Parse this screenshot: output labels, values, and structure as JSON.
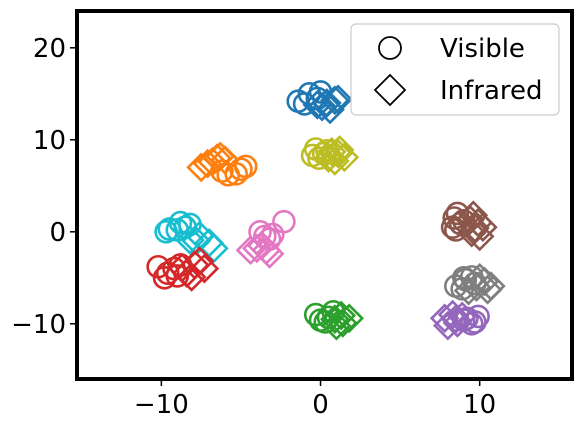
{
  "chart_data": {
    "type": "scatter",
    "title": "",
    "xlabel": "",
    "ylabel": "",
    "xlim": [
      -15.3,
      15.8
    ],
    "ylim": [
      -16.0,
      24.0
    ],
    "xticks": [
      -10,
      0,
      10
    ],
    "yticks": [
      -10,
      0,
      10,
      20
    ],
    "xtick_labels": [
      "−10",
      "0",
      "10"
    ],
    "ytick_labels": [
      "−10",
      "0",
      "10",
      "20"
    ],
    "grid": false,
    "legend_position": "top-right",
    "legend": [
      {
        "label": "Visible",
        "marker": "circle"
      },
      {
        "label": "Infrared",
        "marker": "diamond"
      }
    ],
    "series": [
      {
        "color": "#1f77b4",
        "visible": [
          [
            -1.4,
            14.2
          ],
          [
            -0.7,
            15.0
          ],
          [
            -0.2,
            14.5
          ],
          [
            -1.0,
            13.9
          ],
          [
            0.0,
            15.2
          ]
        ],
        "infrared": [
          [
            0.4,
            14.0
          ],
          [
            0.9,
            14.3
          ],
          [
            0.1,
            13.6
          ],
          [
            0.6,
            13.3
          ],
          [
            -0.2,
            13.8
          ],
          [
            1.1,
            14.4
          ]
        ]
      },
      {
        "color": "#ff7f0e",
        "visible": [
          [
            -5.8,
            6.2
          ],
          [
            -5.0,
            6.8
          ],
          [
            -4.7,
            7.1
          ],
          [
            -6.2,
            6.6
          ],
          [
            -5.3,
            6.3
          ]
        ],
        "infrared": [
          [
            -7.5,
            7.0
          ],
          [
            -6.8,
            7.6
          ],
          [
            -6.3,
            8.2
          ],
          [
            -7.1,
            7.4
          ],
          [
            -6.0,
            7.8
          ],
          [
            -6.5,
            8.0
          ]
        ]
      },
      {
        "color": "#bcbd22",
        "visible": [
          [
            -0.5,
            8.3
          ],
          [
            -0.3,
            9.0
          ],
          [
            0.2,
            8.5
          ],
          [
            -0.1,
            8.0
          ],
          [
            0.4,
            8.8
          ]
        ],
        "infrared": [
          [
            0.5,
            8.0
          ],
          [
            1.1,
            8.5
          ],
          [
            0.9,
            7.7
          ],
          [
            1.5,
            8.1
          ],
          [
            0.7,
            8.7
          ],
          [
            1.2,
            8.9
          ]
        ]
      },
      {
        "color": "#17becf",
        "visible": [
          [
            -9.5,
            0.3
          ],
          [
            -8.8,
            1.0
          ],
          [
            -8.2,
            0.8
          ],
          [
            -9.0,
            0.2
          ],
          [
            -8.5,
            0.5
          ],
          [
            -9.7,
            0.0
          ]
        ],
        "infrared": [
          [
            -8.2,
            -0.9
          ],
          [
            -7.6,
            -0.4
          ],
          [
            -7.0,
            -1.2
          ],
          [
            -7.8,
            -1.0
          ],
          [
            -6.7,
            -1.8
          ]
        ]
      },
      {
        "color": "#e377c2",
        "visible": [
          [
            -3.5,
            -0.5
          ],
          [
            -2.3,
            1.1
          ],
          [
            -3.0,
            -0.3
          ],
          [
            -3.8,
            0.0
          ],
          [
            -3.2,
            -0.8
          ]
        ],
        "infrared": [
          [
            -4.4,
            -2.0
          ],
          [
            -3.7,
            -1.5
          ],
          [
            -3.2,
            -2.4
          ],
          [
            -4.0,
            -1.8
          ],
          [
            -3.4,
            -2.0
          ]
        ]
      },
      {
        "color": "#d62728",
        "visible": [
          [
            -10.2,
            -3.8
          ],
          [
            -9.6,
            -4.5
          ],
          [
            -9.2,
            -4.0
          ],
          [
            -9.8,
            -5.0
          ],
          [
            -9.0,
            -4.8
          ],
          [
            -8.8,
            -3.6
          ]
        ],
        "infrared": [
          [
            -8.4,
            -4.5
          ],
          [
            -7.9,
            -3.6
          ],
          [
            -7.3,
            -4.0
          ],
          [
            -8.1,
            -4.9
          ],
          [
            -7.6,
            -3.2
          ],
          [
            -8.7,
            -3.9
          ]
        ]
      },
      {
        "color": "#2ca02c",
        "visible": [
          [
            -0.3,
            -9.0
          ],
          [
            0.5,
            -9.3
          ],
          [
            0.8,
            -8.7
          ],
          [
            0.0,
            -9.6
          ],
          [
            0.3,
            -9.8
          ]
        ],
        "infrared": [
          [
            0.9,
            -9.5
          ],
          [
            1.4,
            -9.9
          ],
          [
            1.0,
            -10.2
          ],
          [
            1.8,
            -9.4
          ],
          [
            1.3,
            -9.1
          ]
        ]
      },
      {
        "color": "#8c564b",
        "visible": [
          [
            8.4,
            1.5
          ],
          [
            8.8,
            0.9
          ],
          [
            8.3,
            0.5
          ],
          [
            8.6,
            2.0
          ],
          [
            9.0,
            1.2
          ],
          [
            8.5,
            0.2
          ]
        ],
        "infrared": [
          [
            9.4,
            1.3
          ],
          [
            9.7,
            0.4
          ],
          [
            9.9,
            1.0
          ],
          [
            9.5,
            -0.1
          ],
          [
            10.2,
            0.5
          ],
          [
            9.6,
            1.8
          ],
          [
            10.0,
            -0.5
          ]
        ]
      },
      {
        "color": "#7f7f7f",
        "visible": [
          [
            8.5,
            -5.9
          ],
          [
            9.1,
            -5.2
          ],
          [
            9.5,
            -4.9
          ],
          [
            8.9,
            -6.2
          ],
          [
            9.7,
            -5.6
          ],
          [
            9.0,
            -5.0
          ]
        ],
        "infrared": [
          [
            9.8,
            -6.0
          ],
          [
            10.3,
            -5.4
          ],
          [
            10.5,
            -6.3
          ],
          [
            10.0,
            -5.0
          ],
          [
            10.7,
            -5.9
          ],
          [
            9.3,
            -6.4
          ]
        ]
      },
      {
        "color": "#9467bd",
        "visible": [
          [
            9.2,
            -9.4
          ],
          [
            9.7,
            -9.8
          ],
          [
            9.9,
            -9.2
          ],
          [
            9.5,
            -10.0
          ],
          [
            9.0,
            -9.6
          ]
        ],
        "infrared": [
          [
            7.8,
            -9.4
          ],
          [
            8.3,
            -9.0
          ],
          [
            8.6,
            -9.9
          ],
          [
            8.0,
            -10.2
          ],
          [
            8.5,
            -9.5
          ],
          [
            8.9,
            -9.2
          ]
        ]
      }
    ]
  }
}
